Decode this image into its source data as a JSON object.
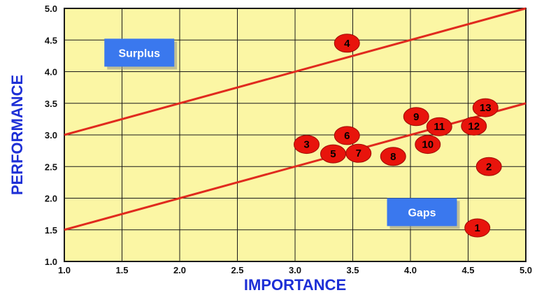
{
  "chart_data": {
    "type": "scatter",
    "xlabel": "IMPORTANCE",
    "ylabel": "PERFORMANCE",
    "xlim": [
      1.0,
      5.0
    ],
    "ylim": [
      1.0,
      5.0
    ],
    "x_ticks": [
      "1.0",
      "1.5",
      "2.0",
      "2.5",
      "3.0",
      "3.5",
      "4.0",
      "4.5",
      "5.0"
    ],
    "y_ticks": [
      "1.0",
      "1.5",
      "2.0",
      "2.5",
      "3.0",
      "3.5",
      "4.0",
      "4.5",
      "5.0"
    ],
    "grid": true,
    "points": [
      {
        "label": "1",
        "x": 4.58,
        "y": 1.53
      },
      {
        "label": "2",
        "x": 4.68,
        "y": 2.5
      },
      {
        "label": "3",
        "x": 3.1,
        "y": 2.85
      },
      {
        "label": "4",
        "x": 3.45,
        "y": 4.45
      },
      {
        "label": "5",
        "x": 3.33,
        "y": 2.7
      },
      {
        "label": "6",
        "x": 3.45,
        "y": 2.99
      },
      {
        "label": "7",
        "x": 3.55,
        "y": 2.71
      },
      {
        "label": "8",
        "x": 3.85,
        "y": 2.66
      },
      {
        "label": "9",
        "x": 4.05,
        "y": 3.29
      },
      {
        "label": "10",
        "x": 4.15,
        "y": 2.85
      },
      {
        "label": "11",
        "x": 4.25,
        "y": 3.13
      },
      {
        "label": "12",
        "x": 4.55,
        "y": 3.14
      },
      {
        "label": "13",
        "x": 4.65,
        "y": 3.43
      }
    ],
    "reference_lines": [
      {
        "from": [
          1.0,
          3.0
        ],
        "to": [
          5.0,
          5.0
        ]
      },
      {
        "from": [
          1.0,
          1.5
        ],
        "to": [
          5.0,
          3.5
        ]
      }
    ],
    "annotations": [
      {
        "text": "Surplus",
        "x": 1.65,
        "y": 4.3
      },
      {
        "text": "Gaps",
        "x": 4.1,
        "y": 1.78
      }
    ],
    "colors": {
      "plot_background": "#fbf6a4",
      "grid": "#1a1a1a",
      "line": "#e02a1e",
      "point": "#e8140c",
      "box": "#3a78ee",
      "axis_title": "#1d2fd6"
    }
  }
}
